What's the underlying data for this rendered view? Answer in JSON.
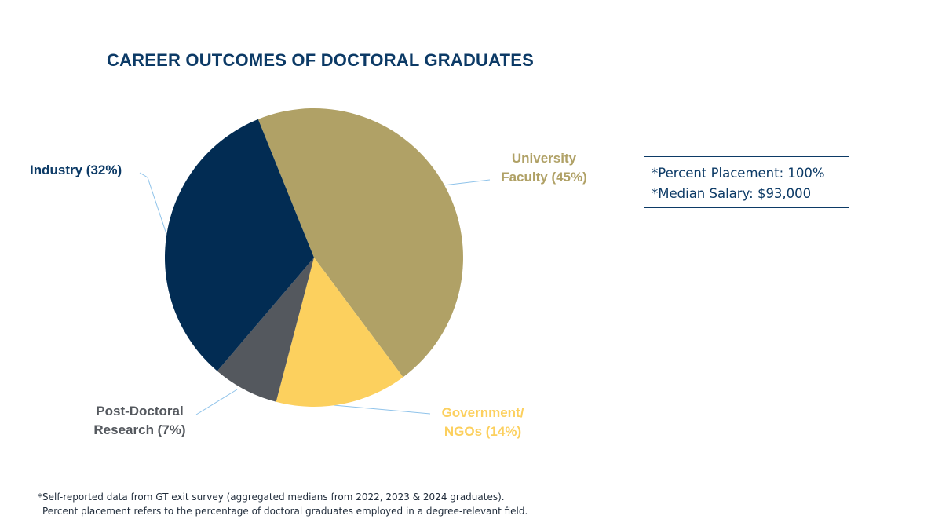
{
  "title": "CAREER OUTCOMES OF DOCTORAL GRADUATES",
  "chart_data": {
    "type": "pie",
    "title": "CAREER OUTCOMES OF DOCTORAL GRADUATES",
    "slices": [
      {
        "label": "University Faculty (45%)",
        "value": 45,
        "color": "#b0a166"
      },
      {
        "label": "Government/ NGOs (14%)",
        "value": 14,
        "color": "#fcd05e"
      },
      {
        "label": "Post-Doctoral Research (7%)",
        "value": 7,
        "color": "#54585e"
      },
      {
        "label": "Industry (32%)",
        "value": 32,
        "color": "#022c53"
      }
    ]
  },
  "labels": {
    "faculty": {
      "line1": "University",
      "line2": "Faculty (45%)",
      "color": "#b0a166"
    },
    "government": {
      "line1": "Government/",
      "line2": "NGOs (14%)",
      "color": "#fcd05e"
    },
    "postdoc": {
      "line1": "Post-Doctoral",
      "line2": "Research (7%)",
      "color": "#54585e"
    },
    "industry": {
      "line1": "Industry (32%)",
      "color": "#0c3a66"
    }
  },
  "stats": {
    "placement": "*Percent Placement: 100%",
    "salary": "*Median Salary: $93,000"
  },
  "footnote": {
    "line1": "*Self-reported data from GT exit survey (aggregated medians from 2022, 2023 & 2024 graduates).",
    "line2": "Percent placement refers to the percentage of doctoral graduates employed in a degree-relevant field."
  },
  "leader_color": "#8fc3ea"
}
